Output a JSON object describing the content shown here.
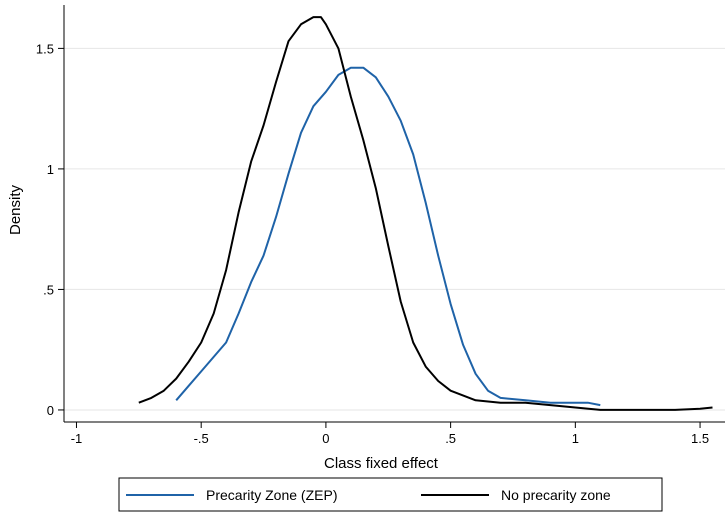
{
  "chart_data": {
    "type": "line",
    "title": "",
    "xlabel": "Class fixed effect",
    "ylabel": "Density",
    "xlim": [
      -1.05,
      1.6
    ],
    "ylim": [
      -0.05,
      1.68
    ],
    "x_ticks": [
      -1,
      -0.5,
      0,
      0.5,
      1,
      1.5
    ],
    "x_tick_labels": [
      "-1",
      "-.5",
      "0",
      ".5",
      "1",
      "1.5"
    ],
    "y_ticks": [
      0,
      0.5,
      1,
      1.5
    ],
    "y_tick_labels": [
      "0",
      ".5",
      "1",
      "1.5"
    ],
    "grid": "horizontal",
    "legend_position": "bottom",
    "series": [
      {
        "name": "Precarity Zone (ZEP)",
        "color": "#1f63a8",
        "x": [
          -0.6,
          -0.55,
          -0.5,
          -0.45,
          -0.4,
          -0.35,
          -0.3,
          -0.25,
          -0.2,
          -0.15,
          -0.1,
          -0.05,
          0.0,
          0.05,
          0.1,
          0.15,
          0.2,
          0.25,
          0.3,
          0.35,
          0.4,
          0.45,
          0.5,
          0.55,
          0.6,
          0.65,
          0.7,
          0.8,
          0.9,
          1.0,
          1.05,
          1.1
        ],
        "y": [
          0.04,
          0.1,
          0.16,
          0.22,
          0.28,
          0.4,
          0.53,
          0.64,
          0.8,
          0.98,
          1.15,
          1.26,
          1.32,
          1.39,
          1.42,
          1.42,
          1.38,
          1.3,
          1.2,
          1.06,
          0.86,
          0.64,
          0.44,
          0.27,
          0.15,
          0.08,
          0.05,
          0.04,
          0.03,
          0.03,
          0.03,
          0.02
        ]
      },
      {
        "name": "No precarity zone",
        "color": "#000000",
        "x": [
          -0.75,
          -0.7,
          -0.65,
          -0.6,
          -0.55,
          -0.5,
          -0.45,
          -0.4,
          -0.35,
          -0.3,
          -0.25,
          -0.2,
          -0.15,
          -0.1,
          -0.05,
          -0.02,
          0.0,
          0.05,
          0.1,
          0.15,
          0.2,
          0.25,
          0.3,
          0.35,
          0.4,
          0.45,
          0.5,
          0.6,
          0.7,
          0.8,
          0.9,
          1.0,
          1.1,
          1.2,
          1.3,
          1.4,
          1.5,
          1.55
        ],
        "y": [
          0.03,
          0.05,
          0.08,
          0.13,
          0.2,
          0.28,
          0.4,
          0.58,
          0.82,
          1.03,
          1.18,
          1.36,
          1.53,
          1.6,
          1.63,
          1.63,
          1.6,
          1.5,
          1.3,
          1.12,
          0.92,
          0.68,
          0.45,
          0.28,
          0.18,
          0.12,
          0.08,
          0.04,
          0.03,
          0.03,
          0.02,
          0.01,
          0.0,
          0.0,
          0.0,
          0.0,
          0.005,
          0.01
        ]
      }
    ]
  }
}
